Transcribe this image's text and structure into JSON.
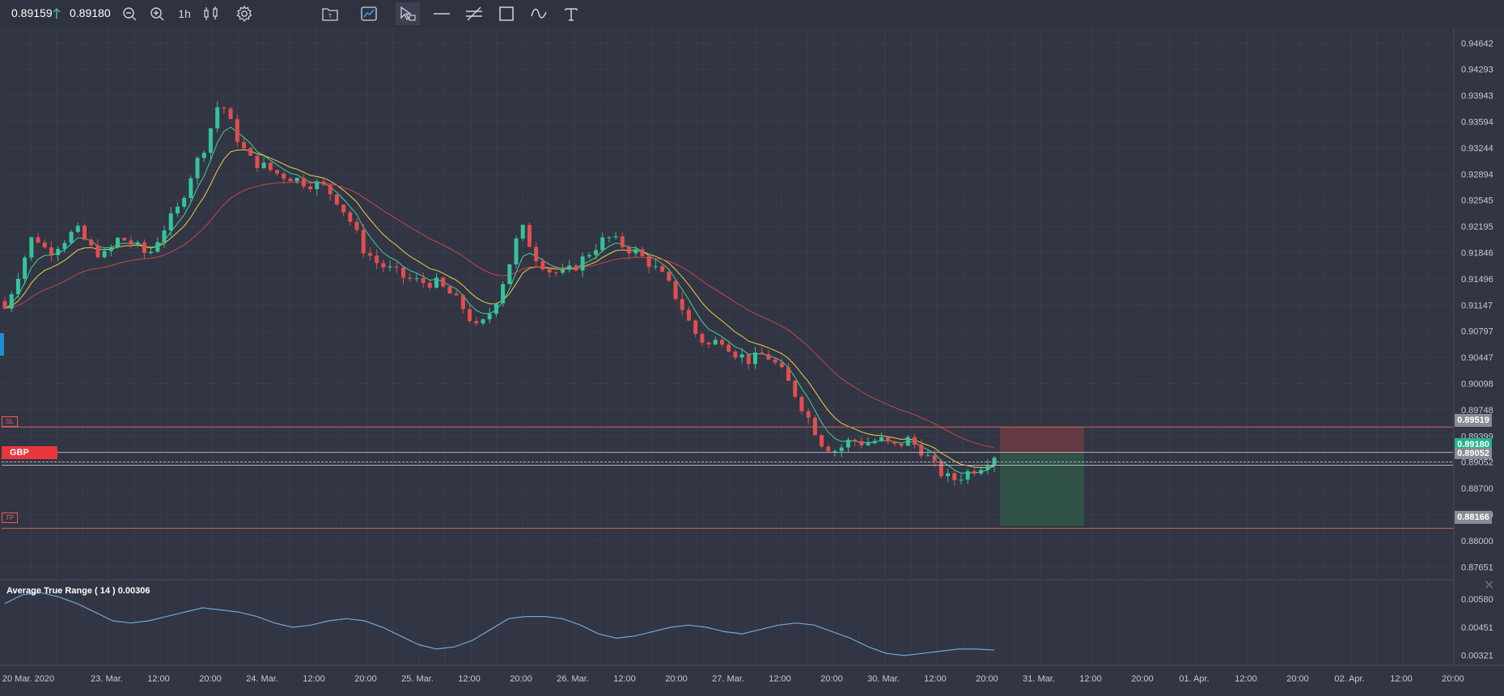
{
  "toolbar": {
    "bid": "0.89159",
    "ask": "0.89180",
    "timeframe": "1h",
    "icons": [
      "zoom-out-icon",
      "zoom-in-icon",
      "candlestick-icon",
      "gear-icon",
      "template-icon",
      "indicator-icon",
      "cursor-icon",
      "horizontal-line-icon",
      "channel-icon",
      "rectangle-icon",
      "curve-icon",
      "text-icon"
    ]
  },
  "price_axis": {
    "labels": [
      "0.94642",
      "0.94293",
      "0.93943",
      "0.93594",
      "0.93244",
      "0.92894",
      "0.92545",
      "0.92195",
      "0.91846",
      "0.91496",
      "0.91147",
      "0.90797",
      "0.90447",
      "0.90098",
      "0.89748",
      "0.89399",
      "0.89052",
      "0.88700",
      "0.88350",
      "0.88000",
      "0.87651"
    ],
    "sl_value": "0.89519",
    "current_value": "0.89180",
    "position_value": "0.89052",
    "tp_value": "0.88166"
  },
  "lines": {
    "sl_label": "SL",
    "tp_label": "TP",
    "position_label": "GBP"
  },
  "time_axis": {
    "labels": [
      "20 Mar. 2020",
      "23. Mar.",
      "12:00",
      "20:00",
      "24. Mar.",
      "12:00",
      "20:00",
      "25. Mar.",
      "12:00",
      "20:00",
      "26. Mar.",
      "12:00",
      "20:00",
      "27. Mar.",
      "12:00",
      "20:00",
      "30. Mar.",
      "12:00",
      "20:00",
      "31. Mar.",
      "12:00",
      "20:00",
      "01. Apr.",
      "12:00",
      "20:00",
      "02. Apr.",
      "12:00",
      "20:00"
    ]
  },
  "atr": {
    "title": "Average True Range ( 14 ) 0.00306",
    "labels": [
      "0.00580",
      "0.00451",
      "0.00321"
    ]
  },
  "colors": {
    "background": "#323543",
    "bull": "#35c39a",
    "bear": "#e04f4f",
    "ma_fast": "#3fd3a0",
    "ma_mid": "#e8d24a",
    "ma_slow": "#c9454a",
    "atr_line": "#6fa7d8",
    "current_tag": "#24b48b"
  },
  "chart_data": {
    "type": "candlestick",
    "symbol_side": "GBP",
    "price_range": [
      0.8745,
      0.9485
    ],
    "series": [
      {
        "name": "Average True Range ( 14 )",
        "last_value": 0.00306
      }
    ],
    "close_path": [
      0.911,
      0.916,
      0.921,
      0.9185,
      0.92,
      0.9215,
      0.919,
      0.918,
      0.9205,
      0.9195,
      0.918,
      0.9215,
      0.924,
      0.929,
      0.933,
      0.939,
      0.9345,
      0.931,
      0.93,
      0.929,
      0.9285,
      0.9278,
      0.9275,
      0.926,
      0.923,
      0.919,
      0.917,
      0.916,
      0.915,
      0.9145,
      0.9145,
      0.913,
      0.911,
      0.908,
      0.911,
      0.916,
      0.922,
      0.918,
      0.916,
      0.9155,
      0.917,
      0.919,
      0.9205,
      0.9195,
      0.9185,
      0.917,
      0.915,
      0.912,
      0.908,
      0.906,
      0.907,
      0.905,
      0.904,
      0.905,
      0.903,
      0.9,
      0.8965,
      0.893,
      0.892,
      0.8935,
      0.893,
      0.8935,
      0.8925,
      0.8935,
      0.892,
      0.8895,
      0.888,
      0.889,
      0.89,
      0.8915
    ]
  }
}
